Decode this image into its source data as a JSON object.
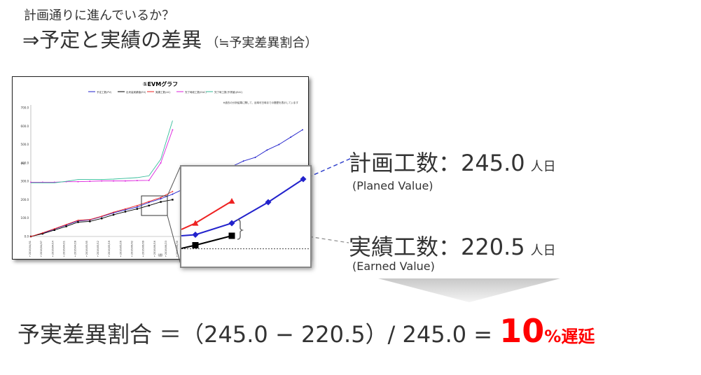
{
  "header": {
    "subtitle": "計画通りに進んでいるか？",
    "title": "⇒予定と実績の差異",
    "title_note": "（≒予実差異割合）"
  },
  "chart_data": {
    "type": "line",
    "title": "①EVMグラフ",
    "note": "※過去の分析結果に関して、反映可日時までの履歴を表示しています",
    "y_label": "(H)",
    "ylim": [
      0,
      700
    ],
    "y_ticks": [
      "0.0",
      "100.0",
      "200.0",
      "300.0",
      "400.0",
      "500.0",
      "600.0",
      "700.0"
    ],
    "x_label": "(週)",
    "x_ticks": [
      "2016/04/01",
      "2016/04/07",
      "2016/04/14",
      "2016/04/21",
      "2016/04/28",
      "2016/05/05",
      "2016/05/12",
      "2016/05/19",
      "2016/05/26",
      "2016/06/02",
      "2016/06/09",
      "2016/06/16",
      "2016/06/23",
      "2016/06/30",
      "2016/07/07",
      "2016/07/14"
    ],
    "x_count": 24,
    "series": [
      {
        "name": "予定工数(PV)",
        "color": "#2222cc",
        "marker": "diamond",
        "values": [
          0,
          18,
          40,
          62,
          85,
          90,
          108,
          128,
          145,
          160,
          185,
          205,
          230,
          260,
          290,
          320,
          350,
          380,
          410,
          430,
          470,
          500,
          540,
          580
        ]
      },
      {
        "name": "出来高実績値(EV)",
        "color": "#000000",
        "marker": "square",
        "values": [
          0,
          15,
          35,
          55,
          78,
          82,
          98,
          118,
          135,
          150,
          168,
          188,
          200
        ]
      },
      {
        "name": "実績工数(AC)",
        "color": "#ee2222",
        "marker": "triangle",
        "values": [
          0,
          20,
          42,
          65,
          88,
          92,
          110,
          132,
          150,
          168,
          190,
          212,
          245
        ]
      },
      {
        "name": "完了時総工数(EAC)",
        "color": "#dd22dd",
        "marker": "star",
        "values": [
          295,
          295,
          295,
          298,
          298,
          300,
          302,
          302,
          302,
          304,
          305,
          400,
          580
        ]
      },
      {
        "name": "完了時工数(予測値)(EAC)",
        "color": "#33bb99",
        "marker": "none",
        "values": [
          292,
          292,
          292,
          300,
          310,
          310,
          310,
          312,
          316,
          320,
          330,
          420,
          630
        ]
      }
    ],
    "zoom_view": {
      "pv": [
        70,
        75,
        130,
        230,
        340
      ],
      "ev": [
        10,
        25,
        70
      ],
      "ac": [
        100,
        130,
        235
      ]
    }
  },
  "metrics": {
    "pv_label": "計画工数：245.0",
    "pv_unit": "人日",
    "pv_en": "(Planed Value)",
    "ev_label": "実績工数：220.5",
    "ev_unit": "人日",
    "ev_en": "(Earned Value)"
  },
  "formula": {
    "text": "予実差異割合 ＝（245.0 − 220.5）/ 245.0 = ",
    "result": "10",
    "result_unit": "%遅延"
  },
  "colors": {
    "pv": "#2222cc",
    "ev": "#000000",
    "ac": "#ee2222",
    "result": "#ff0000"
  }
}
